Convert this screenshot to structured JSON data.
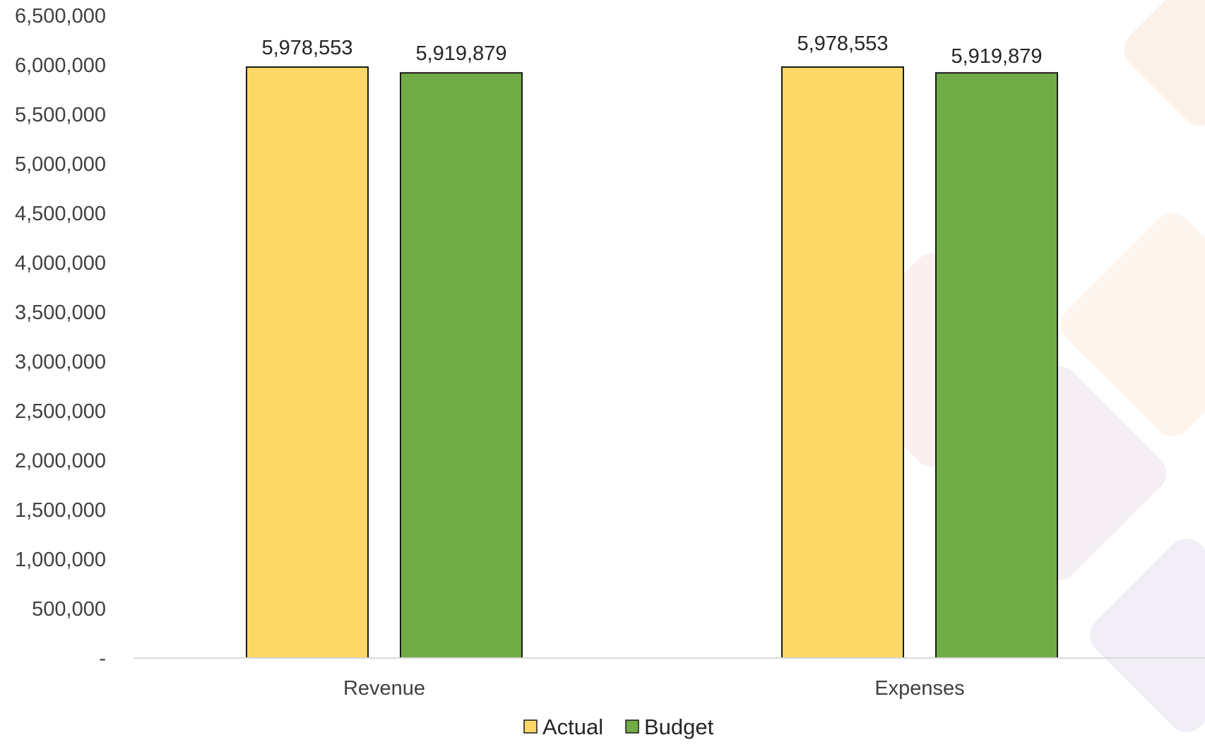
{
  "chart_data": {
    "type": "bar",
    "title": "",
    "xlabel": "",
    "ylabel": "",
    "categories": [
      "Revenue",
      "Expenses"
    ],
    "series": [
      {
        "name": "Actual",
        "values": [
          5978553,
          5978553
        ],
        "labels": [
          "5,978,553",
          "5,978,553"
        ],
        "color": "#FDD866"
      },
      {
        "name": "Budget",
        "values": [
          5919879,
          5919879
        ],
        "labels": [
          "5,919,879",
          "5,919,879"
        ],
        "color": "#71AC47"
      }
    ],
    "ylim": [
      0,
      6500000
    ],
    "yticks": [
      0,
      500000,
      1000000,
      1500000,
      2000000,
      2500000,
      3000000,
      3500000,
      4000000,
      4500000,
      5000000,
      5500000,
      6000000,
      6500000
    ],
    "ytick_labels": [
      "-",
      "500,000",
      "1,000,000",
      "1,500,000",
      "2,000,000",
      "2,500,000",
      "3,000,000",
      "3,500,000",
      "4,000,000",
      "4,500,000",
      "5,000,000",
      "5,500,000",
      "6,000,000",
      "6,500,000"
    ],
    "grid": false,
    "legend_position": "bottom",
    "bar_outline_color": "#1a1a1a",
    "axis_color": "#d9d9d9",
    "background_decor_colors": [
      "#f7e1e3",
      "#efe3ef",
      "#e6e0ef",
      "#fbe8d9"
    ]
  }
}
